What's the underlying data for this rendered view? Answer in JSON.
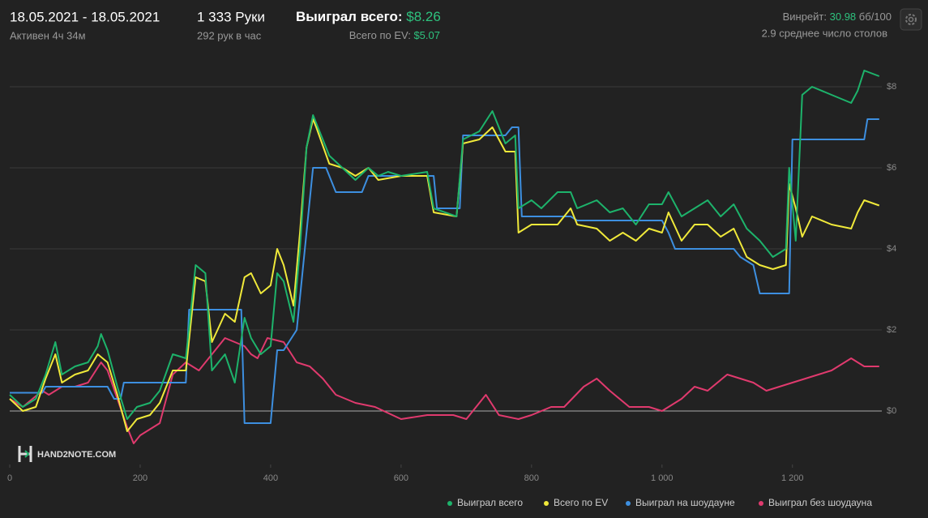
{
  "header": {
    "date_range": "18.05.2021 - 18.05.2021",
    "active": "Активен 4ч 34м",
    "hands": "1 333 Руки",
    "hands_per_hour": "292 рук в час",
    "won_label": "Выиграл всего:",
    "won_value": "$8.26",
    "ev_label": "Всего по EV:",
    "ev_value": "$5.07",
    "winrate_label": "Винрейт:",
    "winrate_value": "30.98",
    "winrate_unit": "бб/100",
    "tables": "2.9 среднее число столов",
    "logo": "HAND2NOTE.COM"
  },
  "chart_data": {
    "type": "line",
    "xlim": [
      0,
      1337
    ],
    "ylim": [
      -1.32,
      8.64
    ],
    "xticks": [
      0,
      200,
      400,
      600,
      800,
      {
        "value": 1000,
        "label": "1 000"
      },
      {
        "value": 1200,
        "label": "1 200"
      }
    ],
    "yticks": [
      {
        "value": 0,
        "label": "$0"
      },
      {
        "value": 2,
        "label": "$2"
      },
      {
        "value": 4,
        "label": "$4"
      },
      {
        "value": 6,
        "label": "$6"
      },
      {
        "value": 8,
        "label": "$8"
      }
    ],
    "grid": true,
    "series": [
      {
        "name": "Выиграл всего",
        "color": "#1db36b",
        "x": [
          0,
          20,
          40,
          55,
          70,
          80,
          100,
          120,
          135,
          140,
          150,
          165,
          180,
          195,
          215,
          230,
          250,
          270,
          285,
          300,
          310,
          330,
          345,
          360,
          370,
          385,
          400,
          410,
          420,
          435,
          445,
          455,
          465,
          470,
          490,
          510,
          530,
          550,
          565,
          580,
          600,
          640,
          650,
          685,
          695,
          720,
          740,
          760,
          775,
          780,
          800,
          815,
          840,
          860,
          870,
          900,
          920,
          940,
          960,
          980,
          1000,
          1010,
          1030,
          1050,
          1070,
          1090,
          1110,
          1130,
          1150,
          1170,
          1190,
          1195,
          1205,
          1215,
          1230,
          1260,
          1290,
          1300,
          1310,
          1333
        ],
        "values": [
          0.4,
          0.1,
          0.3,
          0.9,
          1.7,
          0.9,
          1.1,
          1.2,
          1.6,
          1.9,
          1.5,
          0.6,
          -0.2,
          0.1,
          0.2,
          0.5,
          1.4,
          1.3,
          3.6,
          3.4,
          1.0,
          1.4,
          0.7,
          2.3,
          1.8,
          1.4,
          1.6,
          3.4,
          3.2,
          2.2,
          4.0,
          6.5,
          7.3,
          7.1,
          6.3,
          6.0,
          5.7,
          6.0,
          5.8,
          5.9,
          5.8,
          5.9,
          5.0,
          4.8,
          6.7,
          6.9,
          7.4,
          6.6,
          6.8,
          5.0,
          5.2,
          5.0,
          5.4,
          5.4,
          5.0,
          5.2,
          4.9,
          5.0,
          4.6,
          5.1,
          5.1,
          5.4,
          4.8,
          5.0,
          5.2,
          4.8,
          5.1,
          4.5,
          4.2,
          3.8,
          4.0,
          6.0,
          4.2,
          7.8,
          8.0,
          7.8,
          7.6,
          7.9,
          8.4,
          8.26
        ]
      },
      {
        "name": "Всего по EV",
        "color": "#f0e93a",
        "x": [
          0,
          20,
          40,
          55,
          70,
          80,
          100,
          120,
          135,
          150,
          165,
          180,
          195,
          215,
          230,
          250,
          270,
          285,
          300,
          310,
          330,
          345,
          360,
          370,
          385,
          400,
          410,
          420,
          435,
          445,
          455,
          465,
          470,
          490,
          510,
          530,
          550,
          565,
          600,
          640,
          650,
          685,
          695,
          720,
          740,
          760,
          775,
          780,
          800,
          840,
          860,
          870,
          900,
          920,
          940,
          960,
          980,
          1000,
          1010,
          1030,
          1050,
          1070,
          1090,
          1110,
          1130,
          1150,
          1170,
          1190,
          1195,
          1205,
          1215,
          1230,
          1260,
          1290,
          1300,
          1310,
          1333
        ],
        "values": [
          0.3,
          0,
          0.1,
          0.8,
          1.4,
          0.7,
          0.9,
          1.0,
          1.4,
          1.2,
          0.4,
          -0.5,
          -0.2,
          -0.1,
          0.2,
          1.0,
          1.0,
          3.3,
          3.2,
          1.7,
          2.4,
          2.2,
          3.3,
          3.4,
          2.9,
          3.1,
          4.0,
          3.6,
          2.6,
          4.4,
          6.5,
          7.2,
          7.0,
          6.1,
          6.0,
          5.8,
          6.0,
          5.7,
          5.8,
          5.8,
          4.9,
          4.8,
          6.6,
          6.7,
          7.0,
          6.4,
          6.4,
          4.4,
          4.6,
          4.6,
          5.0,
          4.6,
          4.5,
          4.2,
          4.4,
          4.2,
          4.5,
          4.4,
          4.9,
          4.2,
          4.6,
          4.6,
          4.3,
          4.5,
          3.8,
          3.6,
          3.5,
          3.6,
          5.6,
          5.0,
          4.3,
          4.8,
          4.6,
          4.5,
          4.9,
          5.2,
          5.07
        ]
      },
      {
        "name": "Выиграл на шоудауне",
        "color": "#3d8fe0",
        "x": [
          0,
          50,
          55,
          150,
          160,
          170,
          175,
          270,
          275,
          355,
          360,
          400,
          410,
          420,
          440,
          465,
          485,
          500,
          540,
          550,
          650,
          655,
          690,
          695,
          760,
          770,
          780,
          785,
          860,
          870,
          1000,
          1010,
          1020,
          1110,
          1120,
          1140,
          1150,
          1195,
          1200,
          1310,
          1315,
          1333
        ],
        "values": [
          0.45,
          0.45,
          0.6,
          0.6,
          0.3,
          0.3,
          0.7,
          0.7,
          2.5,
          2.5,
          -0.3,
          -0.3,
          1.5,
          1.5,
          2.0,
          6.0,
          6.0,
          5.4,
          5.4,
          5.8,
          5.8,
          5.0,
          5.0,
          6.8,
          6.8,
          7.0,
          7.0,
          4.8,
          4.8,
          4.7,
          4.7,
          4.4,
          4.0,
          4.0,
          3.8,
          3.6,
          2.9,
          2.9,
          6.7,
          6.7,
          7.2,
          7.2
        ]
      },
      {
        "name": "Выиграл без шоудауна",
        "color": "#e03a6e",
        "x": [
          0,
          20,
          50,
          60,
          80,
          100,
          120,
          140,
          150,
          165,
          180,
          190,
          200,
          230,
          250,
          270,
          290,
          310,
          330,
          345,
          360,
          370,
          380,
          395,
          420,
          440,
          460,
          480,
          500,
          530,
          560,
          600,
          640,
          680,
          700,
          730,
          750,
          780,
          800,
          830,
          850,
          880,
          900,
          920,
          950,
          980,
          1000,
          1030,
          1050,
          1070,
          1100,
          1120,
          1140,
          1160,
          1200,
          1220,
          1240,
          1260,
          1290,
          1310,
          1333
        ],
        "values": [
          0.3,
          0.1,
          0.5,
          0.4,
          0.6,
          0.6,
          0.7,
          1.2,
          1.0,
          0.3,
          -0.4,
          -0.8,
          -0.6,
          -0.3,
          0.9,
          1.2,
          1.0,
          1.4,
          1.8,
          1.7,
          1.6,
          1.4,
          1.3,
          1.8,
          1.7,
          1.2,
          1.1,
          0.8,
          0.4,
          0.2,
          0.1,
          -0.2,
          -0.1,
          -0.1,
          -0.2,
          0.4,
          -0.1,
          -0.2,
          -0.1,
          0.1,
          0.1,
          0.6,
          0.8,
          0.5,
          0.1,
          0.1,
          0.0,
          0.3,
          0.6,
          0.5,
          0.9,
          0.8,
          0.7,
          0.5,
          0.7,
          0.8,
          0.9,
          1.0,
          1.3,
          1.1,
          1.1
        ]
      }
    ]
  }
}
